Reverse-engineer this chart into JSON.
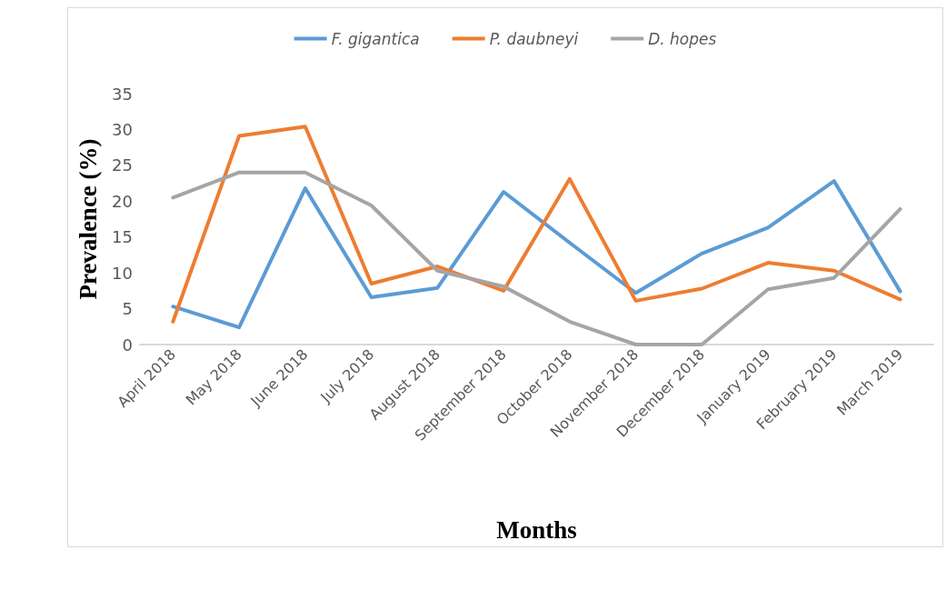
{
  "chart_data": {
    "type": "line",
    "xlabel": "Months",
    "ylabel": "Prevalence (%)",
    "categories": [
      "April 2018",
      "May 2018",
      "June 2018",
      "July 2018",
      "August 2018",
      "September 2018",
      "October 2018",
      "November 2018",
      "December 2018",
      "January 2019",
      "February 2019",
      "March 2019"
    ],
    "series": [
      {
        "name": "F. gigantica",
        "color": "#5b9bd5",
        "values": [
          5.3,
          2.4,
          21.8,
          6.6,
          7.9,
          21.3,
          14.2,
          7.2,
          12.7,
          16.3,
          22.8,
          7.4
        ]
      },
      {
        "name": "P. daubneyi",
        "color": "#ed7d31",
        "values": [
          3.2,
          29.1,
          30.4,
          8.5,
          10.9,
          7.5,
          23.1,
          6.1,
          7.8,
          11.4,
          10.3,
          6.3
        ]
      },
      {
        "name": "D. hopes",
        "color": "#a5a5a5",
        "values": [
          20.5,
          24.0,
          24.0,
          19.4,
          10.3,
          8.1,
          3.2,
          0,
          0,
          7.7,
          9.3,
          18.9
        ]
      }
    ],
    "ylim": [
      0,
      35
    ],
    "yticks": [
      0,
      5,
      10,
      15,
      20,
      25,
      30,
      35
    ],
    "grid": false,
    "legend": "top",
    "marker": "none",
    "line_style": "solid"
  }
}
